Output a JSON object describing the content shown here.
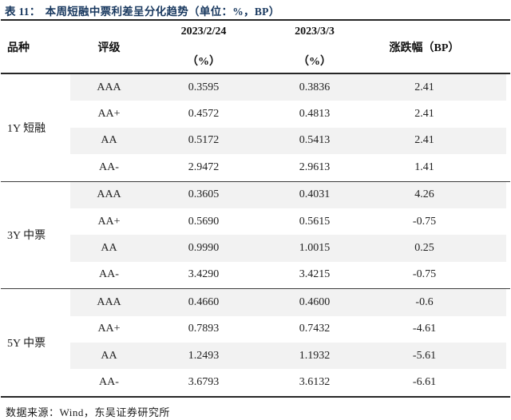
{
  "title": {
    "label": "表 11：",
    "text": "本周短融中票利差呈分化趋势（单位：%，BP）"
  },
  "header": {
    "variety": "品种",
    "rating": "评级",
    "date1_line1": "2023/2/24",
    "date1_line2": "（%）",
    "date2_line1": "2023/3/3",
    "date2_line2": "（%）",
    "change": "涨跌幅（BP）"
  },
  "table": {
    "groups": [
      {
        "variety": "1Y 短融",
        "rows": [
          {
            "rating": "AAA",
            "v1": "0.3595",
            "v2": "0.3836",
            "chg": "2.41"
          },
          {
            "rating": "AA+",
            "v1": "0.4572",
            "v2": "0.4813",
            "chg": "2.41"
          },
          {
            "rating": "AA",
            "v1": "0.5172",
            "v2": "0.5413",
            "chg": "2.41"
          },
          {
            "rating": "AA-",
            "v1": "2.9472",
            "v2": "2.9613",
            "chg": "1.41"
          }
        ]
      },
      {
        "variety": "3Y 中票",
        "rows": [
          {
            "rating": "AAA",
            "v1": "0.3605",
            "v2": "0.4031",
            "chg": "4.26"
          },
          {
            "rating": "AA+",
            "v1": "0.5690",
            "v2": "0.5615",
            "chg": "-0.75"
          },
          {
            "rating": "AA",
            "v1": "0.9990",
            "v2": "1.0015",
            "chg": "0.25"
          },
          {
            "rating": "AA-",
            "v1": "3.4290",
            "v2": "3.4215",
            "chg": "-0.75"
          }
        ]
      },
      {
        "variety": "5Y 中票",
        "rows": [
          {
            "rating": "AAA",
            "v1": "0.4660",
            "v2": "0.4600",
            "chg": "-0.6"
          },
          {
            "rating": "AA+",
            "v1": "0.7893",
            "v2": "0.7432",
            "chg": "-4.61"
          },
          {
            "rating": "AA",
            "v1": "1.2493",
            "v2": "1.1932",
            "chg": "-5.61"
          },
          {
            "rating": "AA-",
            "v1": "3.6793",
            "v2": "3.6132",
            "chg": "-6.61"
          }
        ]
      }
    ]
  },
  "footer": {
    "source": "数据来源：Wind，东吴证券研究所"
  },
  "colors": {
    "title_text": "#17375e",
    "row_shading": "#f2f2f2",
    "rule": "#262626"
  }
}
